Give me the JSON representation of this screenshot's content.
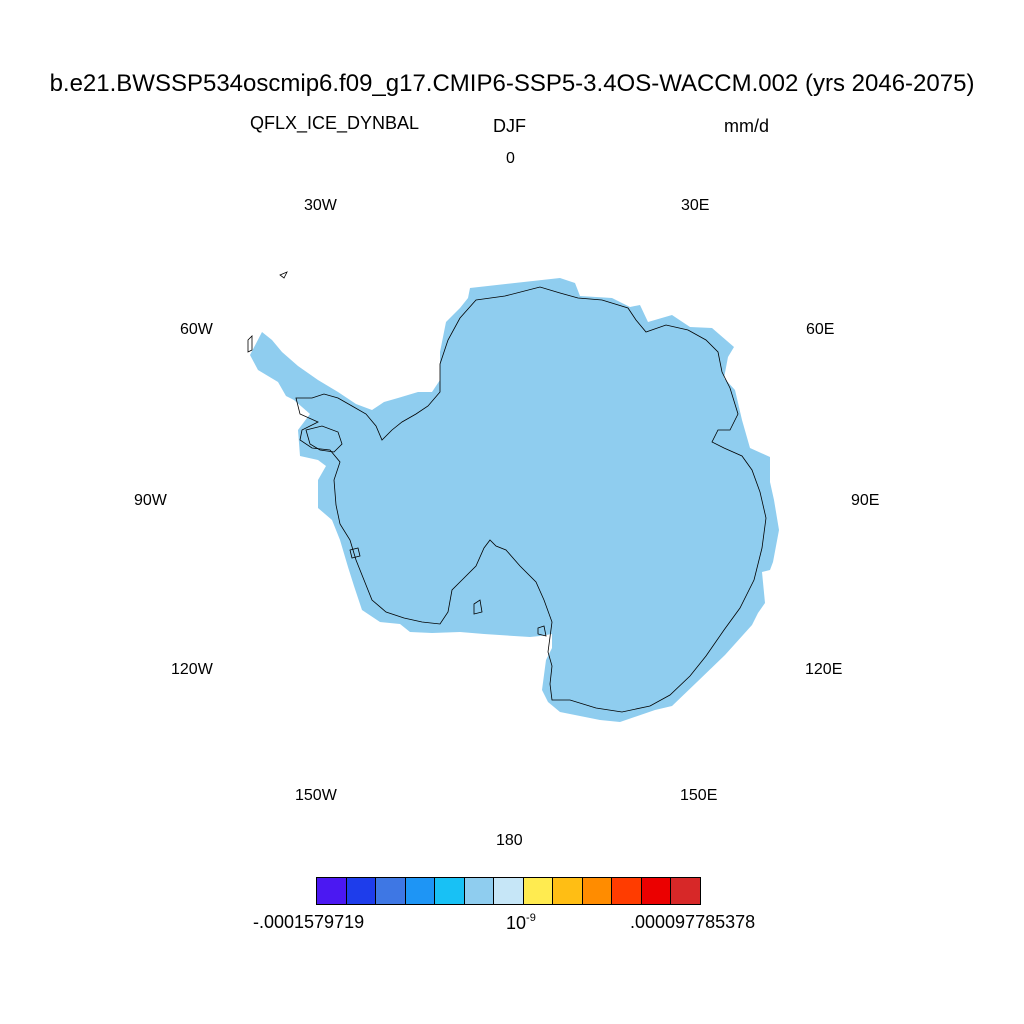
{
  "header": {
    "title": "b.e21.BWSSP534oscmip6.f09_g17.CMIP6-SSP5-3.4OS-WACCM.002 (yrs 2046-2075)",
    "variable": "QFLX_ICE_DYNBAL",
    "season": "DJF",
    "units": "mm/d"
  },
  "longitude_labels": {
    "lon_0": "0",
    "lon_30e": "30E",
    "lon_60e": "60E",
    "lon_90e": "90E",
    "lon_120e": "120E",
    "lon_150e": "150E",
    "lon_180": "180",
    "lon_150w": "150W",
    "lon_120w": "120W",
    "lon_90w": "90W",
    "lon_60w": "60W",
    "lon_30w": "30W"
  },
  "colorbar": {
    "min_label": "-.0001579719",
    "mid_label_base": "10",
    "mid_label_exp": "-9",
    "max_label": ".000097785378",
    "colors": [
      "#4B18F2",
      "#1E3DEB",
      "#3E77E4",
      "#1E95F5",
      "#18C1F5",
      "#8FCDEF",
      "#C6E6F7",
      "#FFEB50",
      "#FFBE14",
      "#FF8C00",
      "#FF3C00",
      "#EB0000",
      "#D72828"
    ]
  },
  "map": {
    "field_color": "#8FCDEF",
    "coastline_color": "#000000",
    "projection": "south polar stereographic"
  }
}
